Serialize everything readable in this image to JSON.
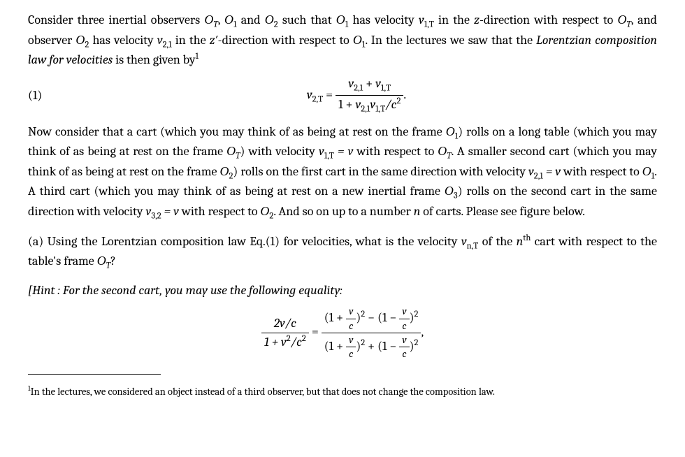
{
  "colors": {
    "text": "#000000",
    "background": "#ffffff",
    "rule": "#000000"
  },
  "typography": {
    "base_fontsize_pt": 13,
    "footnote_fontsize_pt": 11,
    "family": "serif"
  },
  "intro": {
    "line1_a": "Consider three inertial observers ",
    "OT": "O",
    "OTsub": "T",
    "line1_b": ", ",
    "O1": "O",
    "O1sub": "1",
    "line1_c": " and ",
    "O2": "O",
    "O2sub": "2",
    "line1_d": " such that ",
    "line1_e": " has velocity ",
    "v1T": "v",
    "v1Tsub": "1,T",
    "line1_f": " in the ",
    "z": "z",
    "line1_g": "-direction",
    "line2_a": "with respect to ",
    "line2_b": ", and observer ",
    "line2_c": " has velocity ",
    "v21": "v",
    "v21sub": "2,1",
    "line2_d": " in the ",
    "zprime": "z′",
    "line2_e": "-direction with respect to ",
    "line2_f": ". In",
    "line3_a": "the lectures we saw that the ",
    "law_it": "Lorentzian composition law for velocities",
    "line3_b": " is then given by",
    "fn_mark": "1"
  },
  "eq1": {
    "number": "(1)",
    "lhs_v": "v",
    "lhs_sub": "2,T",
    "eq": " = ",
    "num_a": "v",
    "num_a_sub": "2,1",
    "plus": " + ",
    "num_b": "v",
    "num_b_sub": "1,T",
    "den_a": "1 + ",
    "den_b": "v",
    "den_b_sub": "2,1",
    "den_c": "v",
    "den_c_sub": "1,T",
    "den_d": "/c",
    "den_d_sup": "2",
    "period": "."
  },
  "body2": {
    "t1": "Now consider that a cart (which you may think of as being at rest on the frame ",
    "t2": ") rolls on a long table (which you may think of as being at rest on the frame ",
    "t3": ") with velocity ",
    "v1T_eq_v": " = v",
    "t4": " with respect to ",
    "t5": ".  A smaller second cart (which you may think of as being at rest on the frame ",
    "t6": ") rolls on the first cart in the same direction with velocity ",
    "v21_eq_v": " = v",
    "t7": " with respect to ",
    "t8": ". A third cart (which you may think of as being at rest on a new inertial frame ",
    "O3": "O",
    "O3sub": "3",
    "t9": ") rolls on the second cart in the same direction with velocity ",
    "v32": "v",
    "v32sub": "3,2",
    "v32_eq_v": " = v",
    "t10": " with respect to ",
    "t11": ". And so on up to a number ",
    "n": "n",
    "t12": " of carts. Please see figure below."
  },
  "partA": {
    "t1": "(a) Using the Lorentzian composition law Eq.(1) for velocities, what is the velocity ",
    "vnT": "v",
    "vnTsub": "n,T",
    "t2": " of the ",
    "nth": "n",
    "th": "th",
    "t3": " cart with respect to the table's frame ",
    "q": "?"
  },
  "hint": {
    "t1": "[Hint : For the second cart, you may use the following equality:",
    "lhs_num": "2v/c",
    "lhs_den_a": "1 + v",
    "lhs_den_sup": "2",
    "lhs_den_b": "/c",
    "lhs_den_b_sup": "2",
    "eq": " = ",
    "rnum_a": "(1 + ",
    "voc": "v",
    "c": "c",
    "rnum_b": ")",
    "sq": "2",
    "minus": " − ",
    "rnum_c": "(1 − ",
    "rnum_d": ")",
    "plus": " + ",
    "comma": ","
  },
  "footnote": {
    "mark": "1",
    "text": "In the lectures, we considered an object instead of a third observer, but that does not change the composition law."
  }
}
